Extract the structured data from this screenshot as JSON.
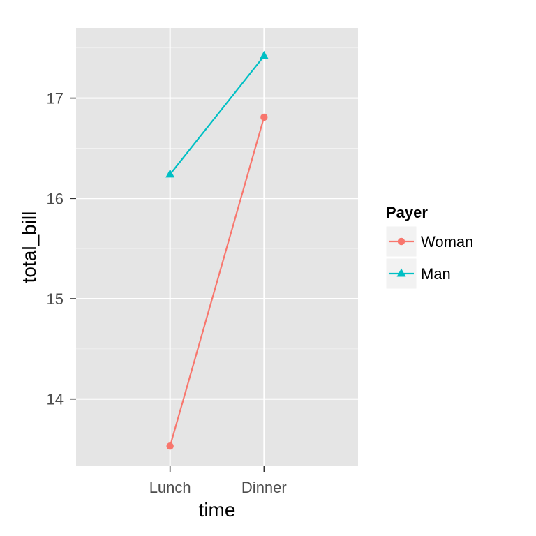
{
  "chart_data": {
    "type": "line",
    "categories": [
      "Lunch",
      "Dinner"
    ],
    "xlabel": "time",
    "ylabel": "total_bill",
    "ylim": [
      13.33,
      17.7
    ],
    "yticks": [
      14,
      15,
      16,
      17
    ],
    "grid": true,
    "legend": {
      "title": "Payer",
      "position": "right"
    },
    "series": [
      {
        "name": "Woman",
        "values": [
          13.53,
          16.81
        ],
        "color": "#F8766D",
        "marker": "circle"
      },
      {
        "name": "Man",
        "values": [
          16.24,
          17.42
        ],
        "color": "#00BFC4",
        "marker": "triangle"
      }
    ]
  },
  "colors": {
    "panel": "#E5E5E5",
    "grid": "#FFFFFF",
    "tick_text": "#4D4D4D"
  }
}
